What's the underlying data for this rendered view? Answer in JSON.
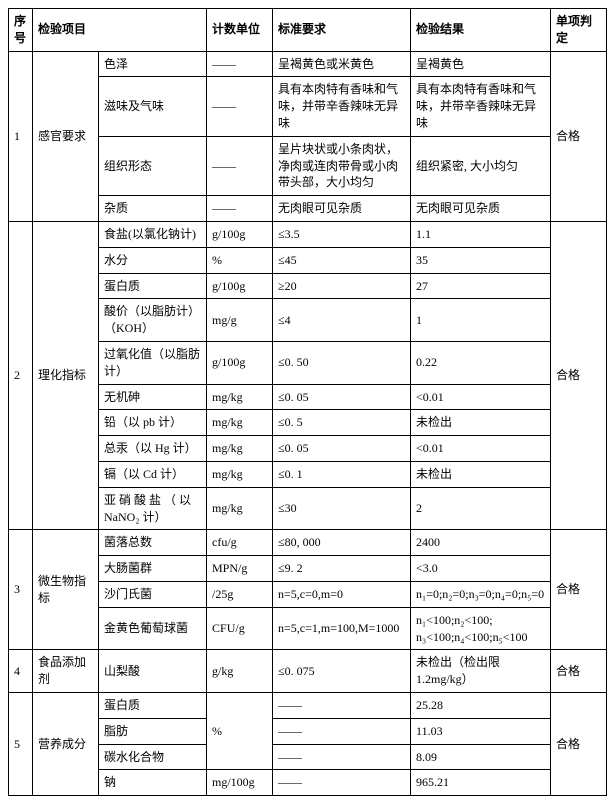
{
  "headers": {
    "seq": "序号",
    "item": "检验项目",
    "unit": "计数单位",
    "std": "标准要求",
    "result": "检验结果",
    "judge": "单项判定"
  },
  "sections": [
    {
      "seq": "1",
      "category": "感官要求",
      "judge": "合格",
      "rows": [
        {
          "item": "色泽",
          "unit": "——",
          "std": "呈褐黄色或米黄色",
          "result": "呈褐黄色"
        },
        {
          "item": "滋味及气味",
          "unit": "——",
          "std": "具有本肉特有香味和气味，并带辛香辣味无异味",
          "result": "具有本肉特有香味和气味，并带辛香辣味无异味"
        },
        {
          "item": "组织形态",
          "unit": "——",
          "std": "呈片块状或小条肉状，净肉或连肉带骨或小肉带头部，大小均匀",
          "result": "组织紧密, 大小均匀"
        },
        {
          "item": "杂质",
          "unit": "——",
          "std": "无肉眼可见杂质",
          "result": "无肉眼可见杂质"
        }
      ]
    },
    {
      "seq": "2",
      "category": "理化指标",
      "judge": "合格",
      "rows": [
        {
          "item": "食盐(以氯化钠计)",
          "unit": "g/100g",
          "std": "≤3.5",
          "result": "1.1"
        },
        {
          "item": "水分",
          "unit": "%",
          "std": "≤45",
          "result": "35"
        },
        {
          "item": "蛋白质",
          "unit": "g/100g",
          "std": "≥20",
          "result": "27"
        },
        {
          "item": "酸价（以脂肪计）（KOH）",
          "unit": "mg/g",
          "std": "≤4",
          "result": "1"
        },
        {
          "item": "过氧化值（以脂肪计）",
          "unit": "g/100g",
          "std": "≤0. 50",
          "result": "0.22"
        },
        {
          "item": "无机砷",
          "unit": "mg/kg",
          "std": "≤0. 05",
          "result": "<0.01"
        },
        {
          "item": "铅（以 pb 计）",
          "unit": "mg/kg",
          "std": "≤0. 5",
          "result": "未检出"
        },
        {
          "item": "总汞（以 Hg 计）",
          "unit": "mg/kg",
          "std": "≤0. 05",
          "result": "<0.01"
        },
        {
          "item": "镉（以 Cd 计）",
          "unit": "mg/kg",
          "std": "≤0. 1",
          "result": "未检出"
        },
        {
          "item": "亚 硝 酸 盐 （ 以 NaNO₂ 计）",
          "unit": "mg/kg",
          "std": "≤30",
          "result": "2"
        }
      ]
    },
    {
      "seq": "3",
      "category": "微生物指标",
      "judge": "合格",
      "rows": [
        {
          "item": "菌落总数",
          "unit": "cfu/g",
          "std": "≤80, 000",
          "result": "2400"
        },
        {
          "item": "大肠菌群",
          "unit": "MPN/g",
          "std": "≤9. 2",
          "result": "<3.0"
        },
        {
          "item": "沙门氏菌",
          "unit": "/25g",
          "std": "n=5,c=0,m=0",
          "result": "n₁=0;n₂=0;n₃=0;n₄=0;n₅=0"
        },
        {
          "item": "金黄色葡萄球菌",
          "unit": "CFU/g",
          "std": "n=5,c=1,m=100,M=1000",
          "result": "n₁<100;n₂<100; n₃<100;n₄<100;n₅<100"
        }
      ]
    },
    {
      "seq": "4",
      "category": "食品添加剂",
      "judge": "合格",
      "rows": [
        {
          "item": "山梨酸",
          "unit": "g/kg",
          "std": "≤0. 075",
          "result": "未检出（检出限 1.2mg/kg）"
        }
      ]
    },
    {
      "seq": "5",
      "category": "营养成分",
      "judge": "合格",
      "rows": [
        {
          "item": "蛋白质",
          "unit": "%",
          "std": "——",
          "result": "25.28"
        },
        {
          "item": "脂肪",
          "unit": "%",
          "std": "——",
          "result": "11.03"
        },
        {
          "item": "碳水化合物",
          "unit": "%",
          "std": "——",
          "result": "8.09"
        },
        {
          "item": "钠",
          "unit": "mg/100g",
          "std": "——",
          "result": "965.21"
        }
      ]
    }
  ]
}
